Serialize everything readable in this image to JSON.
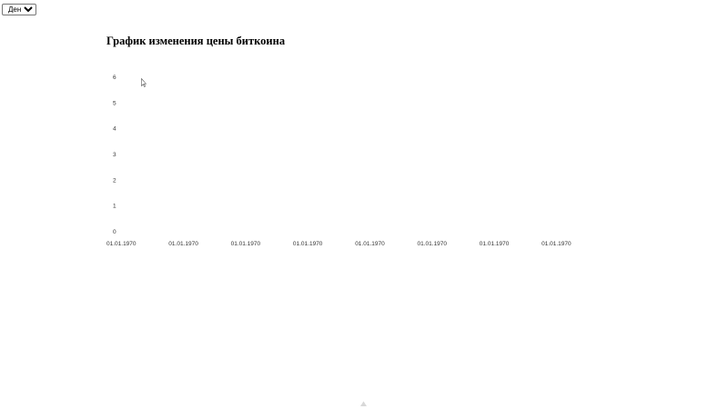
{
  "controls": {
    "period_select": {
      "selected": "День",
      "options": [
        "День"
      ]
    }
  },
  "chart_data": {
    "type": "line",
    "title": "График изменения цены биткоина",
    "xlabel": "",
    "ylabel": "",
    "y_ticks": [
      "0",
      "1",
      "2",
      "3",
      "4",
      "5",
      "6"
    ],
    "x_ticks": [
      "01.01.1970",
      "01.01.1970",
      "01.01.1970",
      "01.01.1970",
      "01.01.1970",
      "01.01.1970",
      "01.01.1970",
      "01.01.1970"
    ],
    "ylim": [
      0,
      6
    ],
    "grid": false,
    "series": []
  },
  "icons": {
    "cursor": "mouse-pointer-icon",
    "bottom": "loading-indicator-icon"
  }
}
